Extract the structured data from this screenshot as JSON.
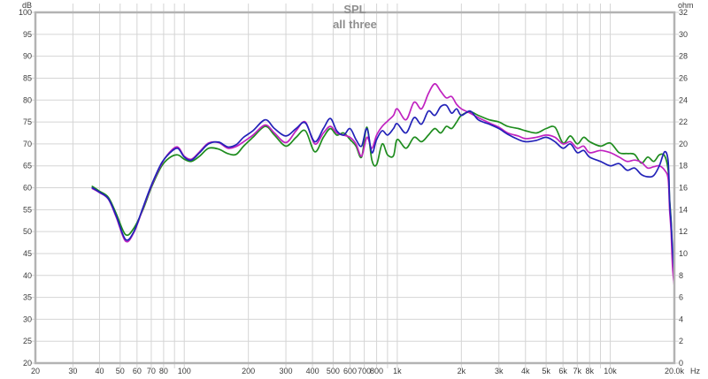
{
  "chart_data": {
    "type": "line",
    "title": "SPL",
    "subtitle": "all three",
    "legend": "none",
    "grid": "on",
    "x_axis": {
      "unit": "Hz",
      "scale": "log",
      "min": 20,
      "max": 20000,
      "gridlines": [
        30,
        40,
        50,
        60,
        70,
        80,
        90,
        100,
        200,
        300,
        400,
        500,
        600,
        700,
        800,
        900,
        1000,
        2000,
        3000,
        4000,
        5000,
        6000,
        7000,
        8000,
        9000,
        10000
      ],
      "tick_labels": [
        {
          "f": 20,
          "text": "20"
        },
        {
          "f": 30,
          "text": "30"
        },
        {
          "f": 40,
          "text": "40"
        },
        {
          "f": 50,
          "text": "50"
        },
        {
          "f": 60,
          "text": "60"
        },
        {
          "f": 70,
          "text": "70"
        },
        {
          "f": 80,
          "text": "80"
        },
        {
          "f": 100,
          "text": "100"
        },
        {
          "f": 200,
          "text": "200"
        },
        {
          "f": 300,
          "text": "300"
        },
        {
          "f": 400,
          "text": "400"
        },
        {
          "f": 500,
          "text": "500"
        },
        {
          "f": 600,
          "text": "600"
        },
        {
          "f": 700,
          "text": "700"
        },
        {
          "f": 800,
          "text": "800"
        },
        {
          "f": 1000,
          "text": "1k"
        },
        {
          "f": 2000,
          "text": "2k"
        },
        {
          "f": 3000,
          "text": "3k"
        },
        {
          "f": 4000,
          "text": "4k"
        },
        {
          "f": 5000,
          "text": "5k"
        },
        {
          "f": 6000,
          "text": "6k"
        },
        {
          "f": 7000,
          "text": "7k"
        },
        {
          "f": 8000,
          "text": "8k"
        },
        {
          "f": 10000,
          "text": "10k"
        },
        {
          "f": 20000,
          "text": "20.0k"
        }
      ]
    },
    "y_axis_left": {
      "unit": "dB",
      "min": 20,
      "max": 100,
      "step": 5
    },
    "y_axis_right": {
      "unit": "ohm",
      "min": 0,
      "max": 32,
      "step": 2
    },
    "colors": {
      "grid": "#d5d5d5",
      "border": "#b3b3b3",
      "tick_text": "#3b3b3b",
      "title_text": "#8f8f8f"
    },
    "series": [
      {
        "name": "green",
        "color": "#1e8c1e",
        "points": [
          [
            37,
            60.3
          ],
          [
            40,
            59.2
          ],
          [
            44,
            57.8
          ],
          [
            48,
            54.0
          ],
          [
            53,
            49.3
          ],
          [
            58,
            50.8
          ],
          [
            64,
            55.0
          ],
          [
            70,
            60.0
          ],
          [
            78,
            64.8
          ],
          [
            85,
            66.8
          ],
          [
            93,
            67.5
          ],
          [
            100,
            66.5
          ],
          [
            108,
            66.0
          ],
          [
            118,
            67.2
          ],
          [
            130,
            69.0
          ],
          [
            145,
            68.8
          ],
          [
            160,
            67.8
          ],
          [
            175,
            67.6
          ],
          [
            190,
            69.5
          ],
          [
            210,
            71.5
          ],
          [
            240,
            74.0
          ],
          [
            265,
            72.0
          ],
          [
            300,
            69.5
          ],
          [
            335,
            71.5
          ],
          [
            370,
            73.0
          ],
          [
            410,
            68.2
          ],
          [
            450,
            71.5
          ],
          [
            485,
            73.5
          ],
          [
            520,
            72.0
          ],
          [
            560,
            72.5
          ],
          [
            600,
            71.0
          ],
          [
            640,
            69.5
          ],
          [
            680,
            67.0
          ],
          [
            720,
            73.8
          ],
          [
            760,
            66.3
          ],
          [
            800,
            65.3
          ],
          [
            850,
            70.0
          ],
          [
            900,
            67.5
          ],
          [
            960,
            67.3
          ],
          [
            1000,
            71.0
          ],
          [
            1100,
            69.0
          ],
          [
            1200,
            71.5
          ],
          [
            1300,
            70.5
          ],
          [
            1400,
            72.0
          ],
          [
            1500,
            73.5
          ],
          [
            1600,
            72.5
          ],
          [
            1700,
            74.0
          ],
          [
            1800,
            73.5
          ],
          [
            1900,
            75.0
          ],
          [
            2000,
            76.5
          ],
          [
            2200,
            77.3
          ],
          [
            2400,
            76.5
          ],
          [
            2700,
            75.5
          ],
          [
            3000,
            75.0
          ],
          [
            3300,
            74.0
          ],
          [
            3700,
            73.5
          ],
          [
            4000,
            73.0
          ],
          [
            4500,
            72.5
          ],
          [
            5000,
            73.5
          ],
          [
            5500,
            73.8
          ],
          [
            6000,
            70.2
          ],
          [
            6500,
            71.8
          ],
          [
            7000,
            70.0
          ],
          [
            7500,
            71.5
          ],
          [
            8000,
            70.5
          ],
          [
            9000,
            69.5
          ],
          [
            10000,
            70.2
          ],
          [
            11000,
            68.0
          ],
          [
            12000,
            67.8
          ],
          [
            13000,
            67.6
          ],
          [
            14000,
            65.6
          ],
          [
            15000,
            67.0
          ],
          [
            16000,
            66.0
          ],
          [
            17000,
            67.5
          ],
          [
            18000,
            67.3
          ],
          [
            18700,
            64.0
          ],
          [
            19000,
            57.5
          ],
          [
            19300,
            52.5
          ],
          [
            19600,
            45.0
          ],
          [
            20000,
            42.0
          ]
        ]
      },
      {
        "name": "magenta",
        "color": "#c022c0",
        "points": [
          [
            37,
            59.8
          ],
          [
            40,
            58.9
          ],
          [
            44,
            57.4
          ],
          [
            48,
            53.2
          ],
          [
            53,
            47.8
          ],
          [
            58,
            49.8
          ],
          [
            64,
            55.3
          ],
          [
            70,
            60.3
          ],
          [
            78,
            65.3
          ],
          [
            85,
            68.0
          ],
          [
            93,
            69.3
          ],
          [
            100,
            67.2
          ],
          [
            108,
            66.5
          ],
          [
            118,
            68.2
          ],
          [
            130,
            70.2
          ],
          [
            145,
            70.3
          ],
          [
            160,
            69.0
          ],
          [
            175,
            69.4
          ],
          [
            190,
            70.5
          ],
          [
            210,
            72.0
          ],
          [
            240,
            74.3
          ],
          [
            265,
            72.5
          ],
          [
            300,
            70.3
          ],
          [
            335,
            73.0
          ],
          [
            370,
            75.0
          ],
          [
            410,
            70.0
          ],
          [
            450,
            72.5
          ],
          [
            485,
            74.0
          ],
          [
            520,
            72.5
          ],
          [
            560,
            72.0
          ],
          [
            600,
            71.5
          ],
          [
            640,
            70.0
          ],
          [
            680,
            67.2
          ],
          [
            720,
            71.5
          ],
          [
            760,
            69.0
          ],
          [
            800,
            72.0
          ],
          [
            850,
            74.0
          ],
          [
            900,
            75.2
          ],
          [
            960,
            76.5
          ],
          [
            1000,
            78.0
          ],
          [
            1100,
            75.5
          ],
          [
            1200,
            79.5
          ],
          [
            1300,
            78.0
          ],
          [
            1400,
            81.5
          ],
          [
            1500,
            83.7
          ],
          [
            1600,
            82.0
          ],
          [
            1700,
            80.5
          ],
          [
            1800,
            80.8
          ],
          [
            1900,
            79.0
          ],
          [
            2000,
            78.0
          ],
          [
            2200,
            77.0
          ],
          [
            2400,
            76.0
          ],
          [
            2700,
            74.8
          ],
          [
            3000,
            73.8
          ],
          [
            3300,
            72.5
          ],
          [
            3700,
            71.8
          ],
          [
            4000,
            71.2
          ],
          [
            4500,
            71.5
          ],
          [
            5000,
            72.0
          ],
          [
            5500,
            71.5
          ],
          [
            6000,
            70.0
          ],
          [
            6500,
            70.5
          ],
          [
            7000,
            69.0
          ],
          [
            7500,
            69.5
          ],
          [
            8000,
            68.0
          ],
          [
            9000,
            68.5
          ],
          [
            10000,
            68.0
          ],
          [
            11000,
            67.0
          ],
          [
            12000,
            66.0
          ],
          [
            13000,
            66.3
          ],
          [
            14000,
            65.8
          ],
          [
            15000,
            64.5
          ],
          [
            16000,
            64.8
          ],
          [
            17000,
            65.0
          ],
          [
            18000,
            64.0
          ],
          [
            18700,
            62.0
          ],
          [
            19000,
            55.0
          ],
          [
            19300,
            50.0
          ],
          [
            19600,
            42.0
          ],
          [
            20000,
            37.5
          ]
        ]
      },
      {
        "name": "blue",
        "color": "#2222b8",
        "points": [
          [
            37,
            60.0
          ],
          [
            40,
            59.0
          ],
          [
            44,
            57.5
          ],
          [
            48,
            53.5
          ],
          [
            53,
            48.2
          ],
          [
            58,
            50.0
          ],
          [
            64,
            55.5
          ],
          [
            70,
            60.5
          ],
          [
            78,
            65.5
          ],
          [
            85,
            67.8
          ],
          [
            93,
            69.0
          ],
          [
            100,
            67.0
          ],
          [
            108,
            66.3
          ],
          [
            118,
            68.0
          ],
          [
            130,
            70.0
          ],
          [
            145,
            70.4
          ],
          [
            160,
            69.3
          ],
          [
            175,
            69.8
          ],
          [
            190,
            71.5
          ],
          [
            210,
            73.0
          ],
          [
            240,
            75.5
          ],
          [
            265,
            73.5
          ],
          [
            300,
            71.8
          ],
          [
            335,
            73.5
          ],
          [
            370,
            74.8
          ],
          [
            410,
            70.5
          ],
          [
            450,
            73.5
          ],
          [
            485,
            75.8
          ],
          [
            520,
            73.0
          ],
          [
            560,
            72.0
          ],
          [
            600,
            73.5
          ],
          [
            640,
            71.0
          ],
          [
            680,
            69.5
          ],
          [
            720,
            73.5
          ],
          [
            760,
            68.0
          ],
          [
            800,
            71.0
          ],
          [
            850,
            73.0
          ],
          [
            900,
            72.0
          ],
          [
            960,
            73.5
          ],
          [
            1000,
            74.6
          ],
          [
            1100,
            72.5
          ],
          [
            1200,
            76.0
          ],
          [
            1300,
            74.5
          ],
          [
            1400,
            77.5
          ],
          [
            1500,
            76.5
          ],
          [
            1600,
            78.5
          ],
          [
            1700,
            78.8
          ],
          [
            1800,
            77.0
          ],
          [
            1900,
            78.0
          ],
          [
            2000,
            76.5
          ],
          [
            2200,
            77.5
          ],
          [
            2400,
            75.5
          ],
          [
            2700,
            74.5
          ],
          [
            3000,
            73.5
          ],
          [
            3300,
            72.2
          ],
          [
            3700,
            71.0
          ],
          [
            4000,
            70.5
          ],
          [
            4500,
            70.8
          ],
          [
            5000,
            71.5
          ],
          [
            5500,
            70.5
          ],
          [
            6000,
            69.0
          ],
          [
            6500,
            70.0
          ],
          [
            7000,
            68.0
          ],
          [
            7500,
            68.5
          ],
          [
            8000,
            67.0
          ],
          [
            9000,
            66.0
          ],
          [
            10000,
            65.0
          ],
          [
            11000,
            65.5
          ],
          [
            12000,
            64.0
          ],
          [
            13000,
            64.5
          ],
          [
            14000,
            63.0
          ],
          [
            15000,
            62.5
          ],
          [
            16000,
            62.8
          ],
          [
            17000,
            65.0
          ],
          [
            18000,
            68.2
          ],
          [
            18700,
            66.0
          ],
          [
            19000,
            57.0
          ],
          [
            19300,
            52.0
          ],
          [
            19600,
            46.0
          ],
          [
            20000,
            40.0
          ]
        ]
      }
    ]
  }
}
